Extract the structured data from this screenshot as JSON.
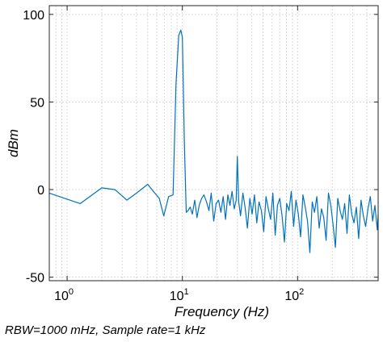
{
  "chart_data": {
    "type": "line",
    "title": "",
    "xlabel": "Frequency (Hz)",
    "ylabel": "dBm",
    "x_scale": "log",
    "xlim": [
      0.7,
      500
    ],
    "ylim": [
      -52,
      105
    ],
    "grid": true,
    "y_ticks": [
      {
        "value": -50,
        "label": "-50"
      },
      {
        "value": 0,
        "label": "0"
      },
      {
        "value": 50,
        "label": "50"
      },
      {
        "value": 100,
        "label": "100"
      }
    ],
    "x_ticks": [
      {
        "value": 1,
        "base": "10",
        "exp": "0"
      },
      {
        "value": 10,
        "base": "10",
        "exp": "1"
      },
      {
        "value": 100,
        "base": "10",
        "exp": "2"
      }
    ],
    "line_color": "#0072bd",
    "series": [
      {
        "x": [
          0.7,
          1.3,
          2.0,
          2.6,
          3.3,
          4.0,
          5.0,
          5.6,
          6.3,
          6.9,
          7.6,
          8.3,
          8.8,
          9.3,
          9.7,
          10.0,
          10.4,
          10.8,
          11.2,
          11.7,
          12.2,
          12.8,
          13.4,
          14.0,
          14.7,
          15.4,
          16.2,
          17.0,
          17.8,
          18.7,
          19.6,
          20.6,
          21.6,
          22.6,
          23.7,
          24.8,
          25.9,
          27.0,
          28.2,
          29.3,
          30.0,
          30.8,
          32.0,
          33.5,
          35.0,
          36.7,
          38.5,
          40.3,
          42.2,
          44.2,
          46.3,
          48.5,
          50.8,
          53.2,
          55.7,
          58.3,
          61.0,
          63.9,
          66.9,
          70.0,
          73.3,
          76.8,
          80.4,
          84.2,
          88.2,
          92.4,
          96.8,
          101.4,
          106.2,
          111.2,
          116.5,
          122.0,
          127.8,
          133.9,
          140.2,
          146.9,
          153.8,
          161.1,
          168.8,
          176.8,
          185.2,
          194.0,
          203.2,
          212.9,
          223.0,
          233.6,
          244.7,
          256.3,
          268.5,
          281.3,
          294.7,
          308.7,
          323.4,
          338.8,
          354.9,
          371.8,
          389.5,
          408.0,
          427.4,
          447.8,
          469.1,
          491.4,
          500.0
        ],
        "y": [
          -2,
          -8,
          1,
          0,
          -6,
          -2,
          3,
          -1,
          -5,
          -15,
          -4,
          -3,
          60,
          88,
          91,
          87,
          28,
          -13,
          -12,
          -10,
          -14,
          -6,
          -16,
          -9,
          -5,
          -3,
          -7,
          -12,
          -2,
          -18,
          -8,
          -6,
          -13,
          -4,
          -17,
          -3,
          -9,
          -1,
          -11,
          -6,
          19,
          -7,
          -15,
          -2,
          -10,
          -22,
          -5,
          -14,
          -3,
          -19,
          -7,
          -12,
          -24,
          -4,
          -11,
          -17,
          -2,
          -26,
          -9,
          -5,
          -15,
          -30,
          -8,
          -12,
          -1,
          -21,
          -6,
          -14,
          -27,
          -3,
          -10,
          -18,
          -36,
          -7,
          -13,
          -4,
          -22,
          -11,
          -16,
          -29,
          -2,
          -9,
          -20,
          -33,
          -5,
          -12,
          -17,
          -8,
          -25,
          -3,
          -14,
          -19,
          -10,
          -28,
          -6,
          -15,
          -21,
          -11,
          -4,
          -18,
          -9,
          -23,
          -14
        ]
      }
    ]
  },
  "footer": {
    "text": "RBW=1000 mHz, Sample rate=1 kHz"
  }
}
